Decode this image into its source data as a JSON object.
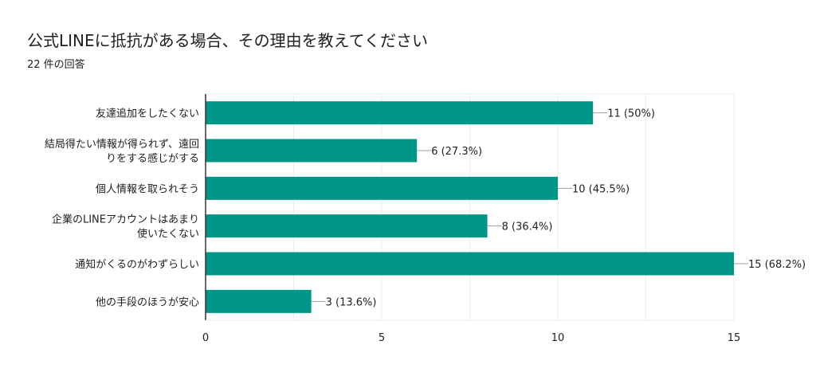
{
  "page": {
    "title": "公式LINEに抵抗がある場合、その理由を教えてください",
    "subtitle": "22 件の回答"
  },
  "colors": {
    "bar": "#009688",
    "grid": "#ebebeb",
    "axis": "#333333"
  },
  "chart_data": {
    "type": "bar",
    "orientation": "horizontal",
    "title": "",
    "xlabel": "",
    "ylabel": "",
    "categories": [
      [
        "友達追加をしたくない"
      ],
      [
        "結局得たい情報が得られず、遠回",
        "りをする感じがする"
      ],
      [
        "個人情報を取られそう"
      ],
      [
        "企業のLINEアカウントはあまり",
        "使いたくない"
      ],
      [
        "通知がくるのがわずらしい"
      ],
      [
        "他の手段のほうが安心"
      ]
    ],
    "values": [
      11,
      6,
      10,
      8,
      15,
      3
    ],
    "value_labels": [
      "11 (50%)",
      "6 (27.3%)",
      "10 (45.5%)",
      "8 (36.4%)",
      "15 (68.2%)",
      "3 (13.6%)"
    ],
    "xlim": [
      0,
      15
    ],
    "xticks": [
      "0",
      "5",
      "10",
      "15"
    ],
    "grid": true
  }
}
